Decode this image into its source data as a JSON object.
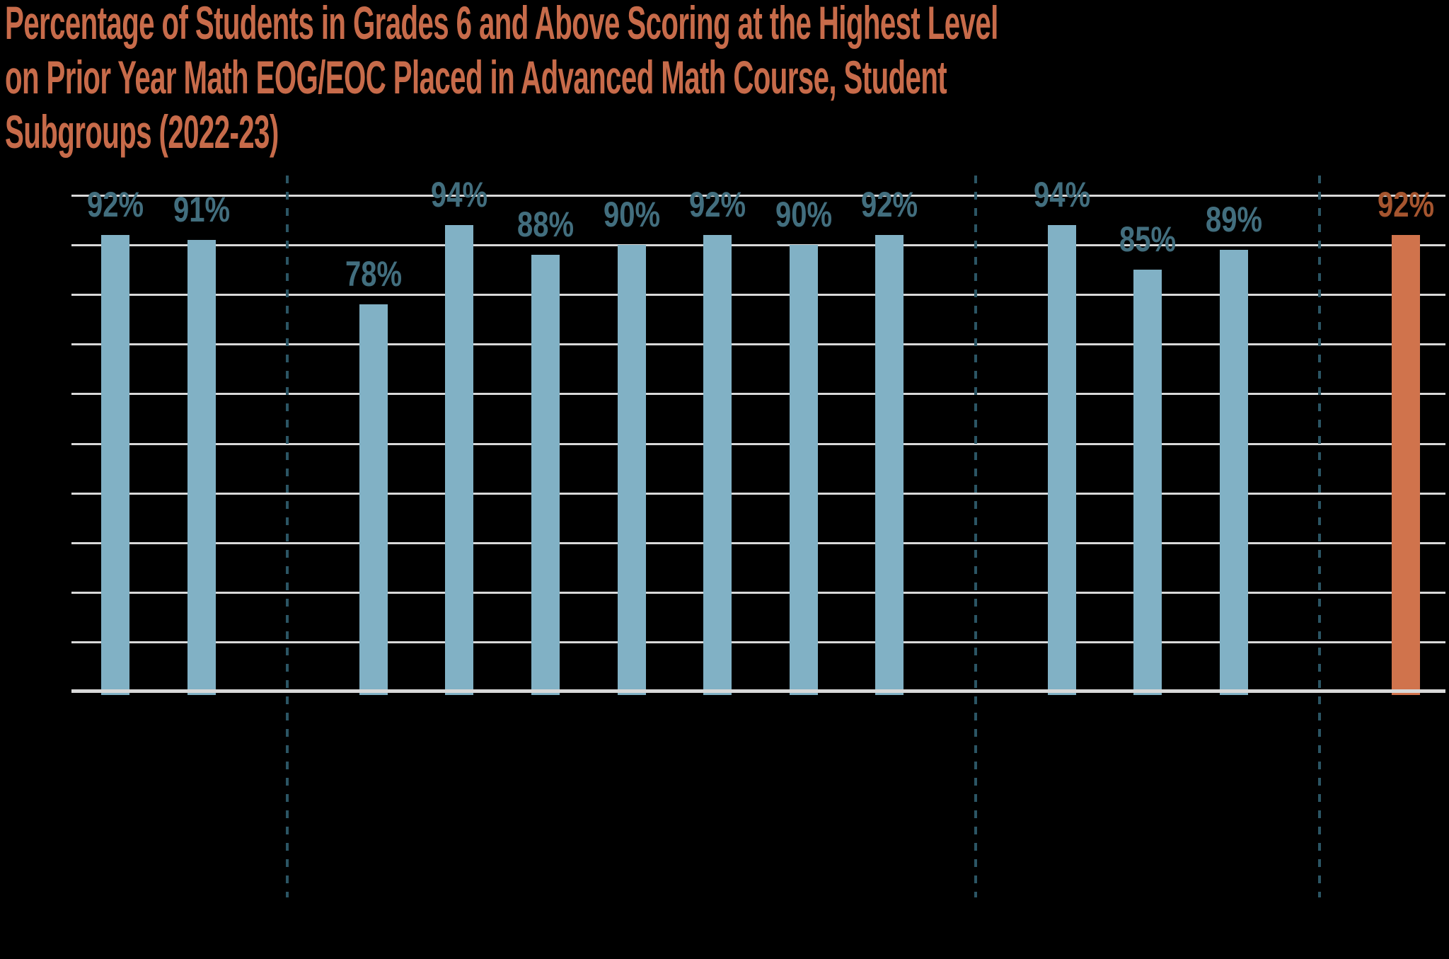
{
  "background_color": "#000000",
  "title": {
    "lines": [
      "Percentage of Students in Grades 6 and Above Scoring at the Highest Level",
      "on Prior Year Math EOG/EOC Placed in Advanced Math Course, Student",
      "Subgroups (2022-23)"
    ],
    "full_text": "Percentage of Students in Grades 6 and Above Scoring at the Highest Level on Prior Year Math EOG/EOC Placed in Advanced Math Course, Student Subgroups (2022-23)",
    "color": "#C76B4A"
  },
  "chart_data": {
    "type": "bar",
    "title": "Percentage of Students in Grades 6 and Above Scoring at the Highest Level on Prior Year Math EOG/EOC Placed in Advanced Math Course, Student Subgroups (2022-23)",
    "values": [
      92,
      91,
      78,
      94,
      88,
      90,
      92,
      90,
      92,
      94,
      85,
      89,
      92
    ],
    "data_labels": [
      "92%",
      "91%",
      "78%",
      "94%",
      "88%",
      "90%",
      "92%",
      "90%",
      "92%",
      "94%",
      "85%",
      "89%",
      "92%"
    ],
    "highlight_index": 12,
    "ylim": [
      0,
      100
    ],
    "gridline_step": 10,
    "grid": true,
    "y_tick_labels_visible": false,
    "x_tick_labels_visible": false,
    "legend": "none",
    "group_separators_after_bar_indices": [
      1,
      8,
      11
    ],
    "colors": {
      "bar": "#81B1C5",
      "highlight_bar": "#D0734C",
      "data_label": "#426E7E",
      "highlight_data_label": "#A5552F",
      "gridline": "#D9D9D9",
      "axis_line": "#D9D9D9",
      "separator_line": "#2B5564"
    }
  }
}
